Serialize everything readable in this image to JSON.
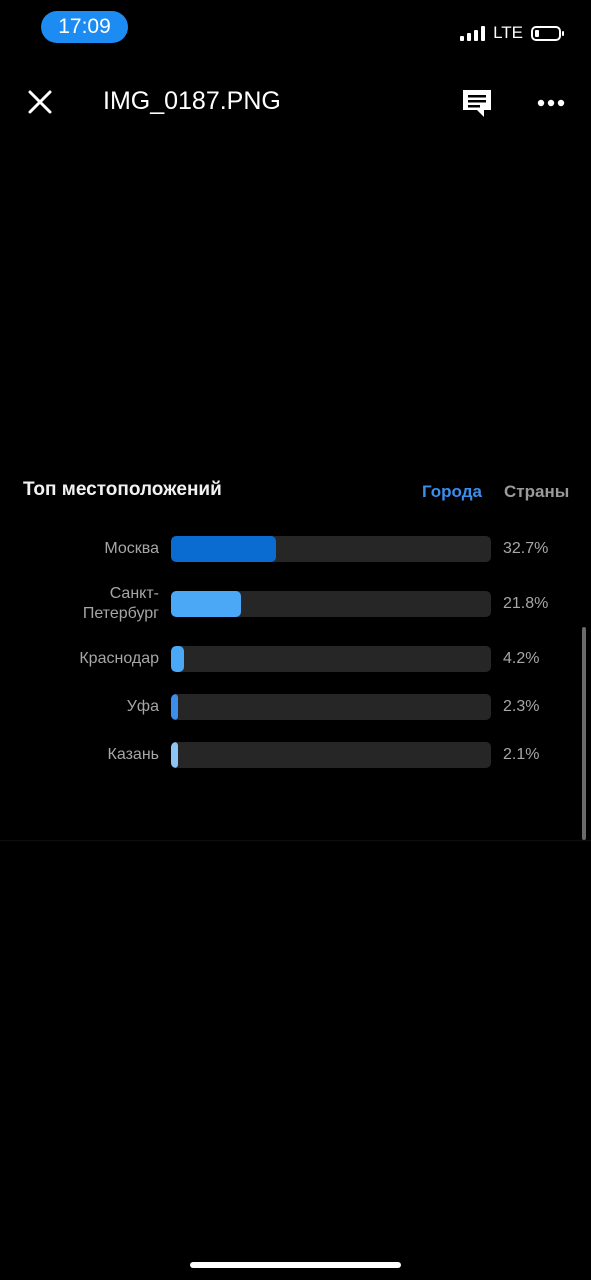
{
  "status_bar": {
    "time": "17:09",
    "network": "LTE"
  },
  "header": {
    "title": "IMG_0187.PNG"
  },
  "section": {
    "title": "Топ местоположений",
    "tabs": [
      {
        "label": "Города",
        "active": true
      },
      {
        "label": "Страны",
        "active": false
      }
    ]
  },
  "chart_data": {
    "type": "bar",
    "categories": [
      "Москва",
      "Санкт-Петербург",
      "Краснодар",
      "Уфа",
      "Казань"
    ],
    "category_labels": [
      [
        "Москва"
      ],
      [
        "Санкт-",
        "Петербург"
      ],
      [
        "Краснодар"
      ],
      [
        "Уфа"
      ],
      [
        "Казань"
      ]
    ],
    "values": [
      32.7,
      21.8,
      4.2,
      2.3,
      2.1
    ],
    "value_labels": [
      "32.7%",
      "21.8%",
      "4.2%",
      "2.3%",
      "2.1%"
    ],
    "ylim": [
      0,
      100
    ],
    "colors": [
      "#0a6cd1",
      "#4aa8f7",
      "#4aa8f7",
      "#3b8eea",
      "#8cc4f4"
    ]
  },
  "colors": {
    "accent": "#3b8eea",
    "status_pill": "#1c8bf2",
    "track": "#262626"
  }
}
